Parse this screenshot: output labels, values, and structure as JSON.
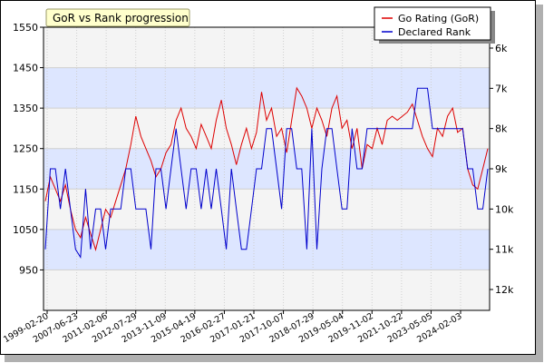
{
  "chart_data": {
    "type": "line",
    "title": "GoR vs Rank progression",
    "legend_position": "top-right",
    "grid": true,
    "left_axis": {
      "ylim": [
        850,
        1550
      ],
      "ticks": [
        950,
        1050,
        1150,
        1250,
        1350,
        1450,
        1550
      ],
      "tick_labels": [
        "950",
        "1050",
        "1150",
        "1250",
        "1350",
        "1450",
        "1550"
      ]
    },
    "right_axis": {
      "reversed": true,
      "ticks": [
        6,
        7,
        8,
        9,
        10,
        11,
        12
      ],
      "tick_labels": [
        "6k",
        "7k",
        "8k",
        "9k",
        "10k",
        "11k",
        "12k"
      ]
    },
    "x_tick_labels": [
      "1999-02-20",
      "2007-06-23",
      "2011-02-06",
      "2012-07-29",
      "2013-11-09",
      "2015-04-19",
      "2016-02-27",
      "2017-01-21",
      "2017-10-07",
      "2018-07-29",
      "2019-05-04",
      "2019-11-02",
      "2021-10-22",
      "2023-05-05",
      "2024-02-03"
    ],
    "series": [
      {
        "name": "Go Rating (GoR)",
        "color": "#dd0000",
        "axis": "left",
        "values": [
          1120,
          1180,
          1150,
          1120,
          1160,
          1100,
          1050,
          1030,
          1080,
          1040,
          1000,
          1050,
          1100,
          1080,
          1120,
          1160,
          1200,
          1260,
          1330,
          1280,
          1250,
          1220,
          1180,
          1200,
          1240,
          1260,
          1320,
          1350,
          1300,
          1280,
          1250,
          1310,
          1280,
          1250,
          1320,
          1370,
          1300,
          1260,
          1210,
          1260,
          1300,
          1250,
          1290,
          1390,
          1320,
          1350,
          1280,
          1300,
          1240,
          1320,
          1400,
          1380,
          1350,
          1300,
          1350,
          1320,
          1280,
          1350,
          1380,
          1300,
          1320,
          1250,
          1300,
          1200,
          1260,
          1250,
          1300,
          1260,
          1320,
          1330,
          1320,
          1330,
          1340,
          1360,
          1320,
          1280,
          1250,
          1230,
          1300,
          1280,
          1330,
          1350,
          1290,
          1300,
          1200,
          1160,
          1150,
          1200,
          1250
        ]
      },
      {
        "name": "Declared Rank",
        "color": "#0000cc",
        "axis": "right",
        "values": [
          11,
          9,
          9,
          10,
          9,
          10,
          11,
          11.2,
          9.5,
          11,
          10,
          10,
          11,
          10,
          10,
          10,
          9,
          9,
          10,
          10,
          10,
          11,
          9,
          9,
          10,
          9,
          8,
          9,
          10,
          9,
          9,
          10,
          9,
          10,
          9,
          10,
          11,
          9,
          10,
          11,
          11,
          10,
          9,
          9,
          8,
          8,
          9,
          10,
          8,
          8,
          9,
          9,
          11,
          8,
          11,
          9,
          8,
          8,
          9,
          10,
          10,
          8,
          9,
          9,
          8,
          8,
          8,
          8,
          8,
          8,
          8,
          8,
          8,
          8,
          7,
          7,
          7,
          8,
          8,
          8,
          8,
          8,
          8,
          8,
          9,
          9,
          10,
          10,
          9
        ]
      }
    ]
  }
}
